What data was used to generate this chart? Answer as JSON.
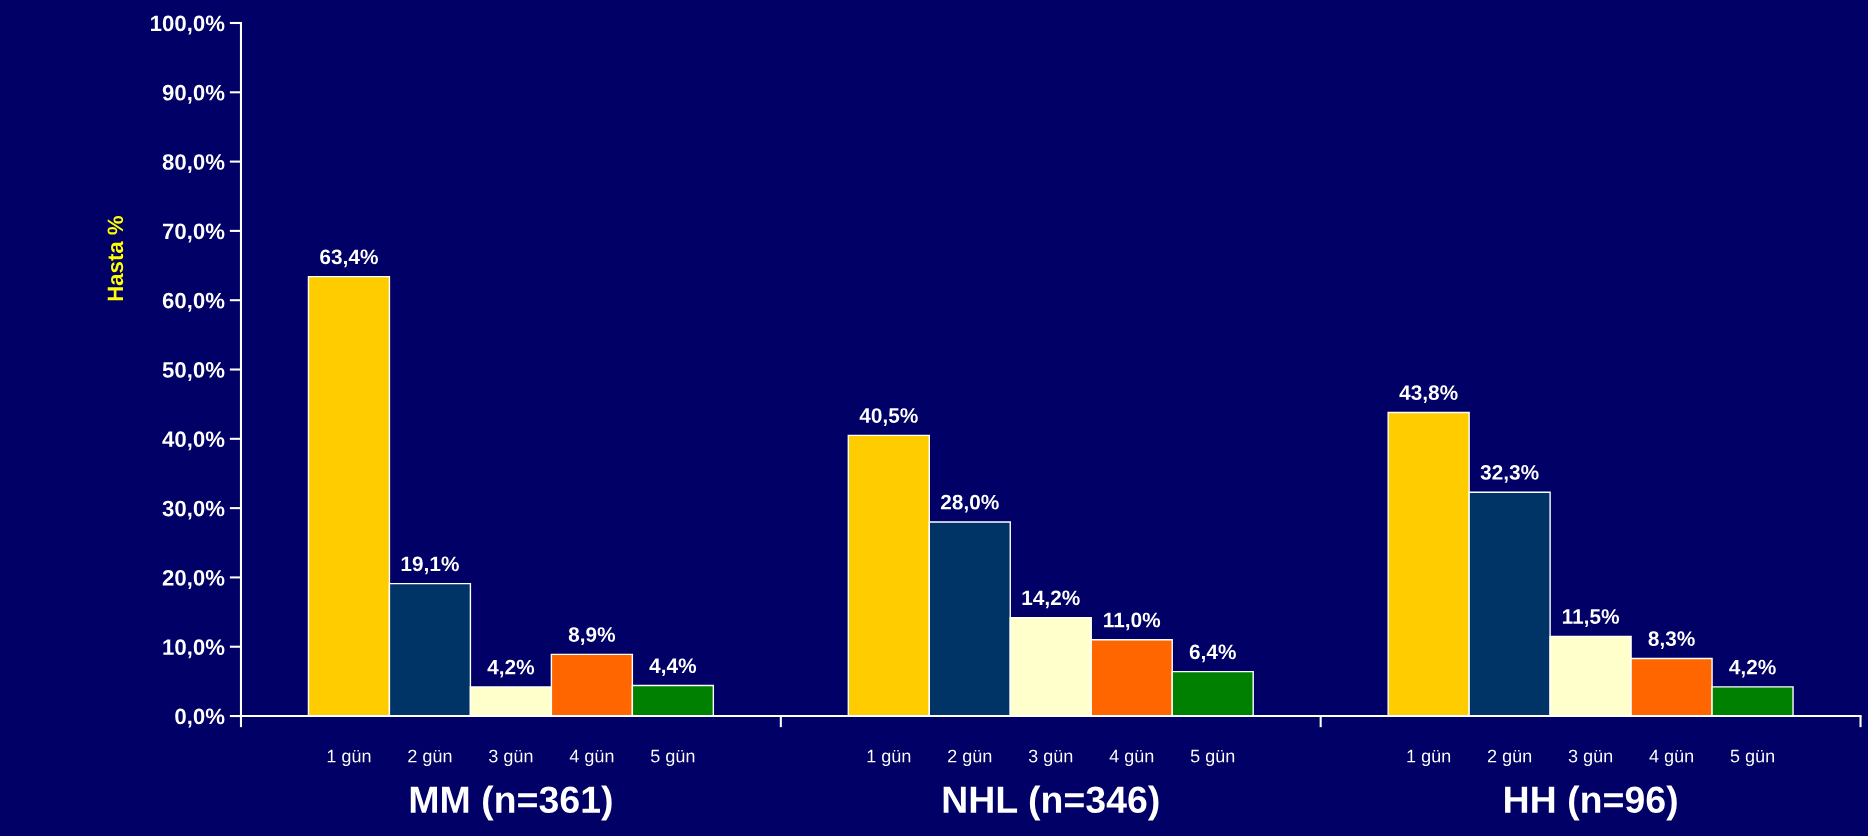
{
  "chart_data": {
    "type": "bar",
    "ylabel": "Hasta %",
    "categories": [
      "MM (n=361)",
      "NHL (n=346)",
      "HH (n=96)"
    ],
    "series": [
      {
        "name": "1 gün",
        "color": "#ffcc00",
        "values": [
          63.4,
          40.5,
          43.8
        ],
        "value_labels": [
          "63,4%",
          "40,5%",
          "43,8%"
        ]
      },
      {
        "name": "2 gün",
        "color": "#003366",
        "values": [
          19.1,
          28.0,
          32.3
        ],
        "value_labels": [
          "19,1%",
          "28,0%",
          "32,3%"
        ]
      },
      {
        "name": "3 gün",
        "color": "#ffffcc",
        "values": [
          4.2,
          14.2,
          11.5
        ],
        "value_labels": [
          "4,2%",
          "14,2%",
          "11,5%"
        ]
      },
      {
        "name": "4 gün",
        "color": "#ff6600",
        "values": [
          8.9,
          11.0,
          8.3
        ],
        "value_labels": [
          "8,9%",
          "11,0%",
          "8,3%"
        ]
      },
      {
        "name": "5 gün",
        "color": "#008000",
        "values": [
          4.4,
          6.4,
          4.2
        ],
        "value_labels": [
          "4,4%",
          "6,4%",
          "4,2%"
        ]
      }
    ],
    "ylim": [
      0,
      100
    ],
    "yticks": [
      {
        "value": 0,
        "label": "0,0%"
      },
      {
        "value": 10,
        "label": "10,0%"
      },
      {
        "value": 20,
        "label": "20,0%"
      },
      {
        "value": 30,
        "label": "30,0%"
      },
      {
        "value": 40,
        "label": "40,0%"
      },
      {
        "value": 50,
        "label": "50,0%"
      },
      {
        "value": 60,
        "label": "60,0%"
      },
      {
        "value": 70,
        "label": "70,0%"
      },
      {
        "value": 80,
        "label": "80,0%"
      },
      {
        "value": 90,
        "label": "90,0%"
      },
      {
        "value": 100,
        "label": "100,0%"
      }
    ],
    "grid": false,
    "legend": false
  }
}
